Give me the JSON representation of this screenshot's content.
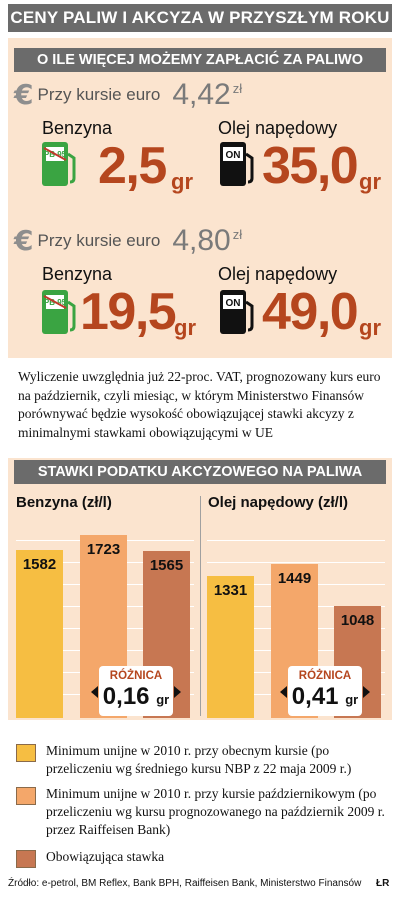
{
  "title": "CENY PALIW I AKCYZA W PRZYSZŁYM ROKU",
  "prices_section": {
    "header": "O ILE WIĘCEJ MOŻEMY ZAPŁACIĆ ZA PALIWO",
    "euro_sign": "€",
    "scenarios": [
      {
        "label": "Przy kursie euro",
        "rate": "4,42",
        "rate_unit": "zł",
        "fuels": [
          {
            "name": "Benzyna",
            "value": "2,5",
            "unit": "gr",
            "icon": "pb95-fuel-pump-icon",
            "icon_text": "PB 95"
          },
          {
            "name": "Olej napędowy",
            "value": "35,0",
            "unit": "gr",
            "icon": "on-fuel-pump-icon",
            "icon_text": "ON"
          }
        ]
      },
      {
        "label": "Przy kursie euro",
        "rate": "4,80",
        "rate_unit": "zł",
        "fuels": [
          {
            "name": "Benzyna",
            "value": "19,5",
            "unit": "gr",
            "icon": "pb95-fuel-pump-icon",
            "icon_text": "PB 95"
          },
          {
            "name": "Olej napędowy",
            "value": "49,0",
            "unit": "gr",
            "icon": "on-fuel-pump-icon",
            "icon_text": "ON"
          }
        ]
      }
    ]
  },
  "note": "Wyliczenie uwzględnia już 22-proc. VAT, prognozowany kurs euro na październik, czyli miesiąc, w którym Ministerstwo Finansów porównywać będzie wysokość obowiązującej stawki akcyzy z minimalnymi stawkami obowiązującymi w UE",
  "chart_data": {
    "type": "bar",
    "title": "STAWKI PODATKU AKCYZOWEGO NA PALIWA",
    "panels": [
      {
        "title": "Benzyna (zł/l)",
        "categories": [
          "Minimum unijne w 2010 r. przy obecnym kursie",
          "Minimum unijne w 2010 r. przy kursie październikowym",
          "Obowiązująca stawka"
        ],
        "values": [
          1582,
          1723,
          1565
        ],
        "value_labels": [
          "1582",
          "1723",
          "1565"
        ],
        "difference_label": "RÓŻNICA",
        "difference_value": "0,16",
        "difference_unit": "gr"
      },
      {
        "title": "Olej napędowy (zł/l)",
        "categories": [
          "Minimum unijne w 2010 r. przy obecnym kursie",
          "Minimum unijne w 2010 r. przy kursie październikowym",
          "Obowiązująca stawka"
        ],
        "values": [
          1331,
          1449,
          1048
        ],
        "value_labels": [
          "1331",
          "1449",
          "1048"
        ],
        "difference_label": "RÓŻNICA",
        "difference_value": "0,41",
        "difference_unit": "gr"
      }
    ],
    "legend": [
      {
        "text": "Minimum unijne w 2010 r. przy obecnym kursie (po przeliczeniu wg średniego kursu NBP z 22 maja 2009 r.)",
        "color": "#f6be42"
      },
      {
        "text": "Minimum unijne w 2010 r. przy kursie październikowym (po przeliczeniu wg kursu prognozowanego na październik 2009 r. przez Raiffeisen Bank)",
        "color": "#f4a76a"
      },
      {
        "text": "Obowiązująca stawka",
        "color": "#c77752"
      }
    ],
    "colors": [
      "#f6be42",
      "#f4a76a",
      "#c77752"
    ],
    "grid": true
  },
  "source": "Źródło: e-petrol, BM Reflex, Bank BPH, Raiffeisen Bank, Ministerstwo Finansów",
  "author": "ŁR",
  "colors": {
    "header_bg": "#6b6b6b",
    "panel_bg": "#fbe4cf",
    "accent": "#b5461e",
    "pump_green": "#3aa442",
    "pump_black": "#111111"
  }
}
